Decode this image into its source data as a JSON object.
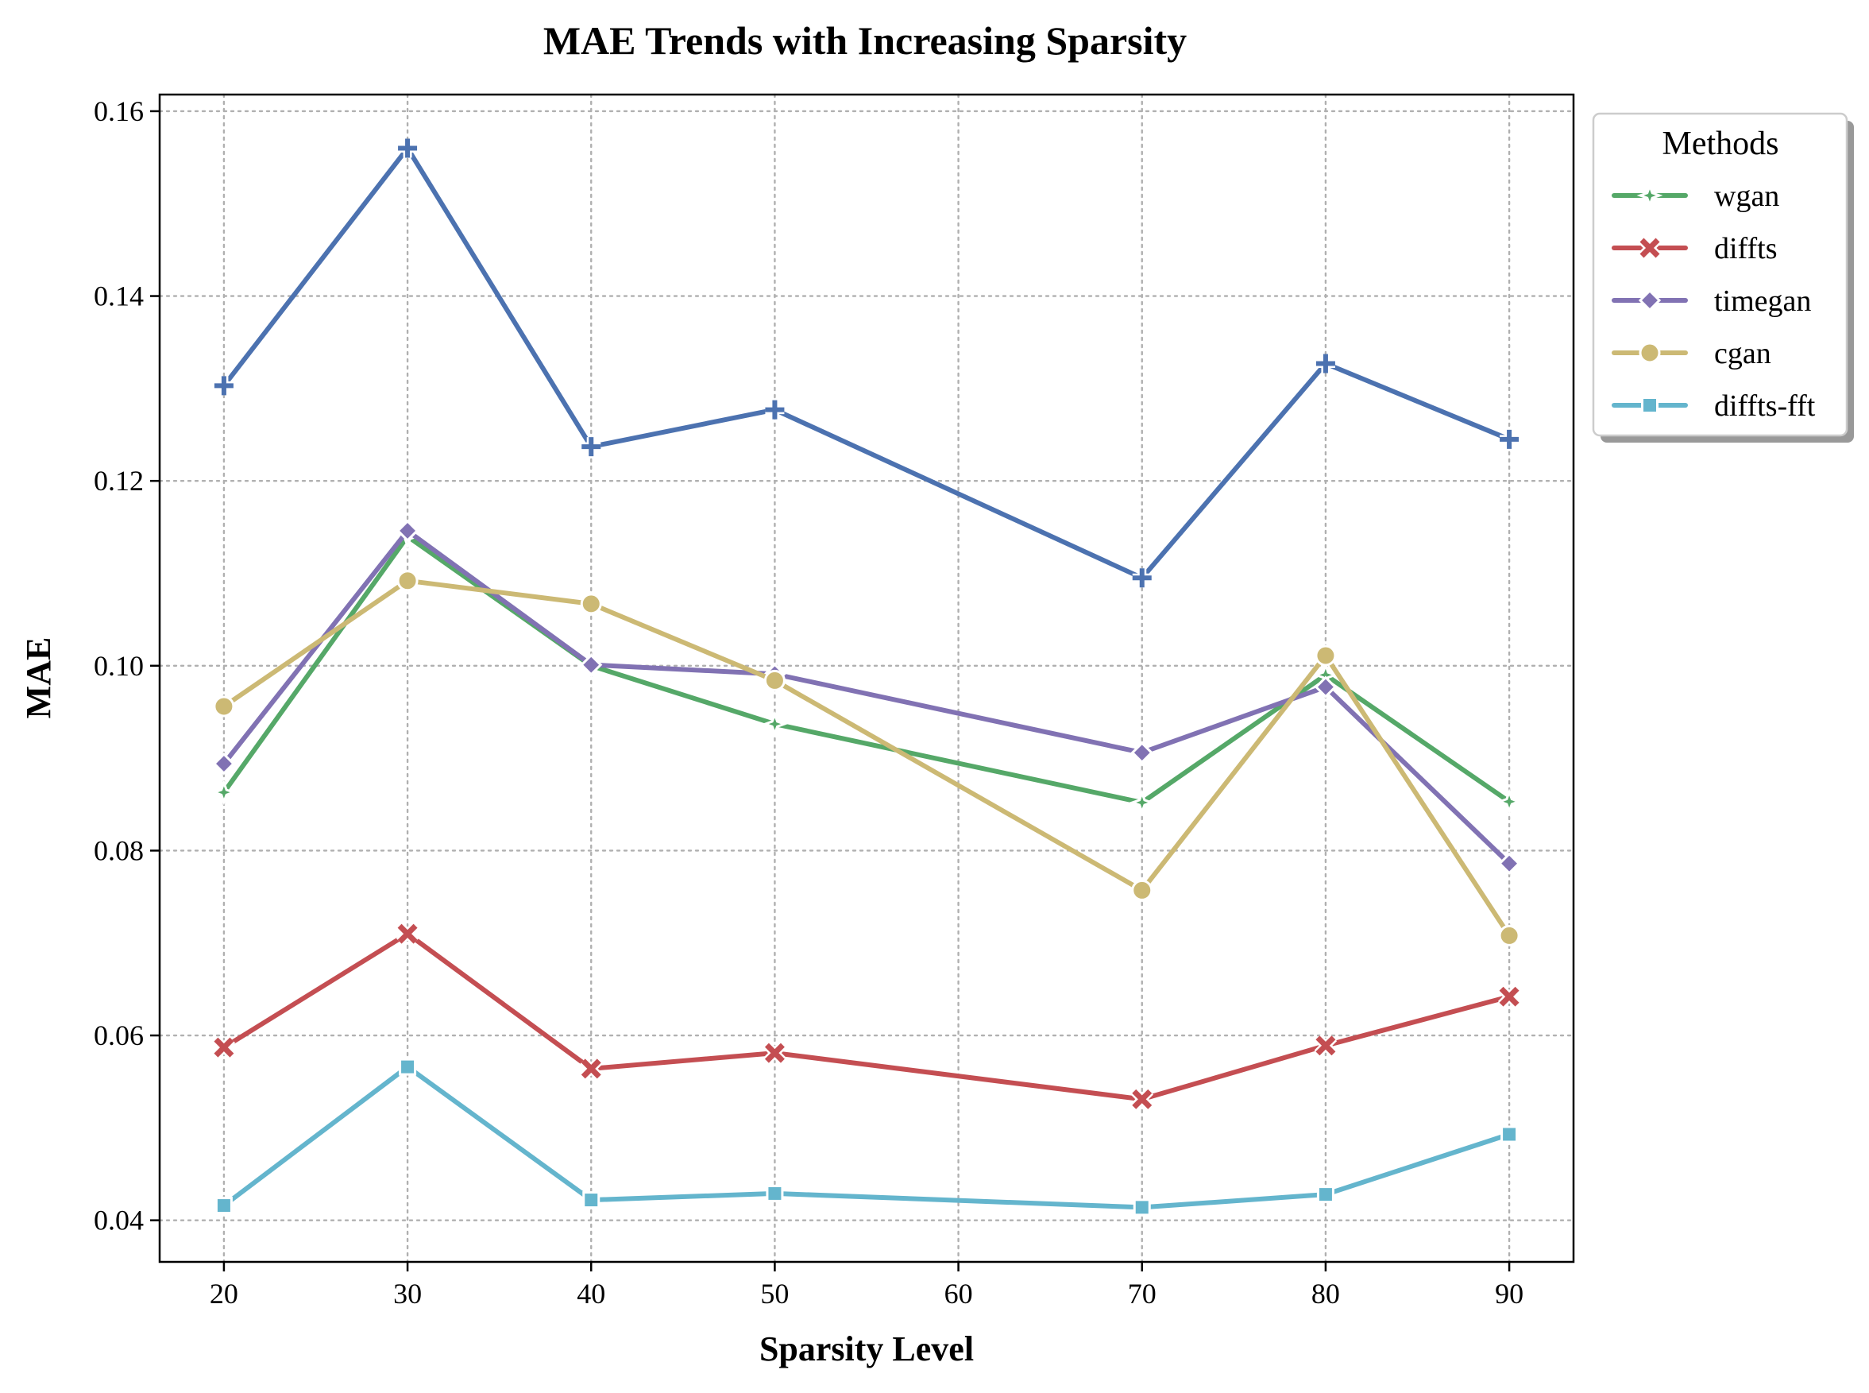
{
  "chart_data": {
    "type": "line",
    "title": "MAE Trends with Increasing Sparsity",
    "xlabel": "Sparsity Level",
    "ylabel": "MAE",
    "xlim": [
      16.5,
      93.5
    ],
    "ylim": [
      0.0355,
      0.1618
    ],
    "xticks": [
      20,
      30,
      40,
      50,
      60,
      70,
      80,
      90
    ],
    "xtick_labels": [
      "20",
      "30",
      "40",
      "50",
      "60",
      "70",
      "80",
      "90"
    ],
    "yticks": [
      0.04,
      0.06,
      0.08,
      0.1,
      0.12,
      0.14,
      0.16
    ],
    "ytick_labels": [
      "0.04",
      "0.06",
      "0.08",
      "0.10",
      "0.12",
      "0.14",
      "0.16"
    ],
    "grid": true,
    "legend": {
      "title": "Methods",
      "placement": "outside upper-right"
    },
    "series": [
      {
        "name": "",
        "color": "#4c72b0",
        "marker": "plus",
        "x": [
          20,
          30,
          40,
          50,
          70,
          80,
          90
        ],
        "values": [
          0.1303,
          0.156,
          0.1237,
          0.1277,
          0.1095,
          0.1327,
          0.1245
        ]
      },
      {
        "name": "wgan",
        "color": "#55a868",
        "marker": "star",
        "x": [
          20,
          30,
          40,
          50,
          70,
          80,
          90
        ],
        "values": [
          0.0863,
          0.114,
          0.1,
          0.0937,
          0.0852,
          0.099,
          0.0853
        ]
      },
      {
        "name": "diffts",
        "color": "#c44e52",
        "marker": "x",
        "x": [
          20,
          30,
          40,
          50,
          70,
          80,
          90
        ],
        "values": [
          0.0587,
          0.071,
          0.0564,
          0.0581,
          0.0531,
          0.0589,
          0.0642
        ]
      },
      {
        "name": "timegan",
        "color": "#8172b3",
        "marker": "diamond",
        "x": [
          20,
          30,
          40,
          50,
          70,
          80,
          90
        ],
        "values": [
          0.0894,
          0.1146,
          0.1001,
          0.0991,
          0.0906,
          0.0977,
          0.0786
        ]
      },
      {
        "name": "cgan",
        "color": "#ccb974",
        "marker": "circle",
        "x": [
          20,
          30,
          40,
          50,
          70,
          80,
          90
        ],
        "values": [
          0.0956,
          0.1092,
          0.1067,
          0.0984,
          0.0757,
          0.1011,
          0.0708
        ]
      },
      {
        "name": "diffts-fft",
        "color": "#64b5cd",
        "marker": "square",
        "x": [
          20,
          30,
          40,
          50,
          70,
          80,
          90
        ],
        "values": [
          0.0416,
          0.0566,
          0.0422,
          0.0429,
          0.0414,
          0.0428,
          0.0493
        ]
      }
    ]
  }
}
